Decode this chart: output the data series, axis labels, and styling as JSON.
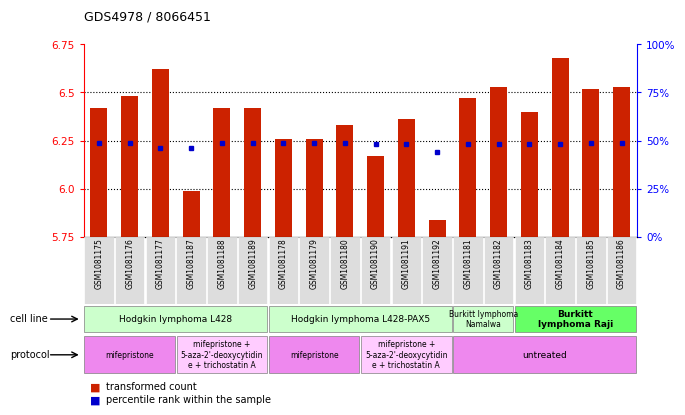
{
  "title": "GDS4978 / 8066451",
  "samples": [
    "GSM1081175",
    "GSM1081176",
    "GSM1081177",
    "GSM1081187",
    "GSM1081188",
    "GSM1081189",
    "GSM1081178",
    "GSM1081179",
    "GSM1081180",
    "GSM1081190",
    "GSM1081191",
    "GSM1081192",
    "GSM1081181",
    "GSM1081182",
    "GSM1081183",
    "GSM1081184",
    "GSM1081185",
    "GSM1081186"
  ],
  "transformed_count": [
    6.42,
    6.48,
    6.62,
    5.99,
    6.42,
    6.42,
    6.26,
    6.26,
    6.33,
    6.17,
    6.36,
    5.84,
    6.47,
    6.53,
    6.4,
    6.68,
    6.52,
    6.53
  ],
  "percentile_rank_pct": [
    49,
    49,
    46,
    46,
    49,
    49,
    49,
    49,
    49,
    48,
    48,
    44,
    48,
    48,
    48,
    48,
    49,
    49
  ],
  "ymin": 5.75,
  "ymax": 6.75,
  "yticks": [
    5.75,
    6.0,
    6.25,
    6.5,
    6.75
  ],
  "right_yticks": [
    0,
    25,
    50,
    75,
    100
  ],
  "right_ytick_labels": [
    "0%",
    "25%",
    "50%",
    "75%",
    "100%"
  ],
  "bar_color": "#CC2200",
  "blue_color": "#0000CC",
  "bg_color": "#ffffff",
  "cell_line_groups": [
    {
      "label": "Hodgkin lymphoma L428",
      "start": 0,
      "end": 6,
      "color": "#ccffcc"
    },
    {
      "label": "Hodgkin lymphoma L428-PAX5",
      "start": 6,
      "end": 12,
      "color": "#ccffcc"
    },
    {
      "label": "Burkitt lymphoma\nNamalwa",
      "start": 12,
      "end": 14,
      "color": "#ccffcc"
    },
    {
      "label": "Burkitt\nlymphoma Raji",
      "start": 14,
      "end": 18,
      "color": "#66ff66"
    }
  ],
  "protocol_groups": [
    {
      "label": "mifepristone",
      "start": 0,
      "end": 3,
      "color": "#ee88ee"
    },
    {
      "label": "mifepristone +\n5-aza-2'-deoxycytidin\ne + trichostatin A",
      "start": 3,
      "end": 6,
      "color": "#ffccff"
    },
    {
      "label": "mifepristone",
      "start": 6,
      "end": 9,
      "color": "#ee88ee"
    },
    {
      "label": "mifepristone +\n5-aza-2'-deoxycytidin\ne + trichostatin A",
      "start": 9,
      "end": 12,
      "color": "#ffccff"
    },
    {
      "label": "untreated",
      "start": 12,
      "end": 18,
      "color": "#ee88ee"
    }
  ],
  "xticklabel_bg": "#dddddd"
}
